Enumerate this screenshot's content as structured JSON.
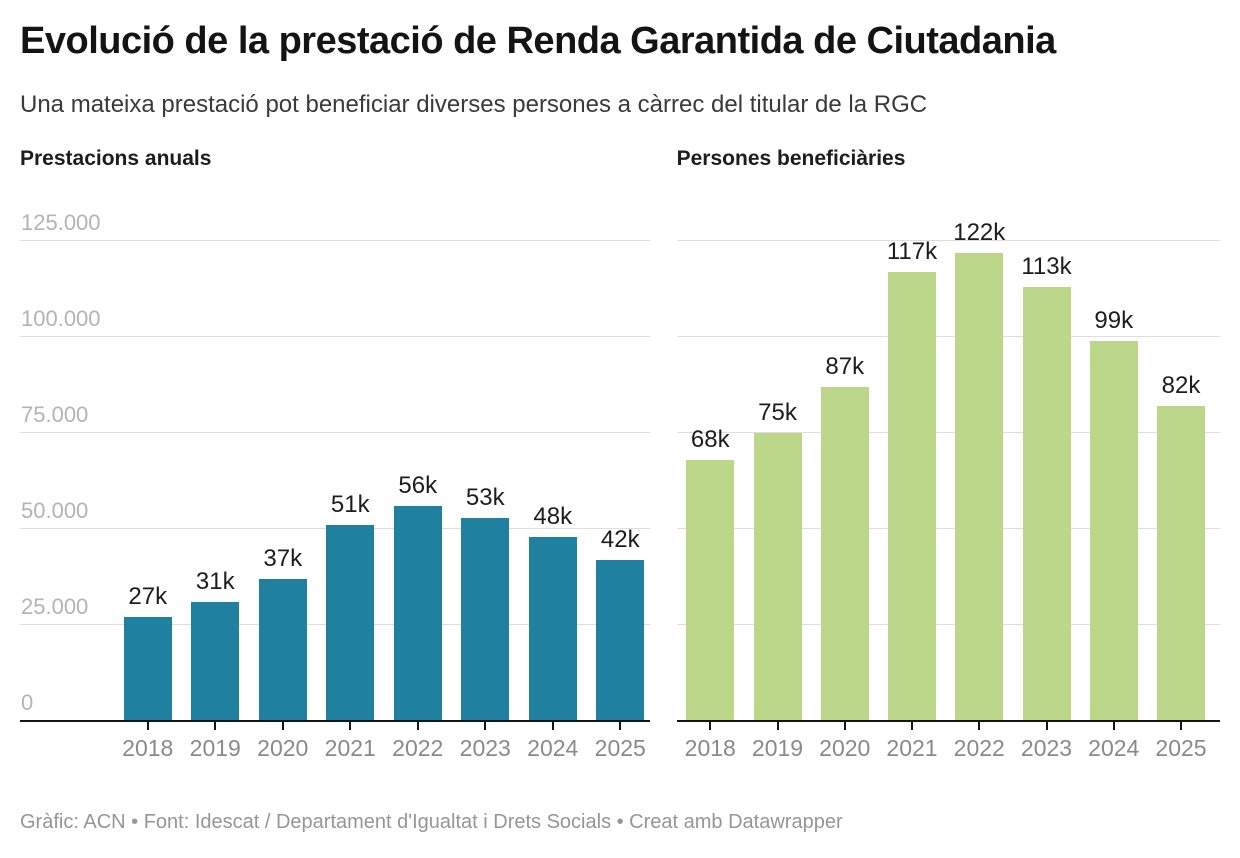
{
  "page": {
    "title": "Evolució de la prestació de Renda Garantida de Ciutadania",
    "subtitle": "Una mateixa prestació pot beneficiar diverses persones a càrrec del titular de la RGC",
    "footer": "Gràfic: ACN • Font: Idescat / Departament d'Igualtat i Drets Socials • Creat amb Datawrapper"
  },
  "colors": {
    "teal_bar": "#20809f",
    "green_bar": "#bcd78a",
    "gridline": "#dedede",
    "axis": "#141414",
    "y_tick_label": "#b4b4b4",
    "x_tick_label": "#8a8a8a",
    "value_label": "#1d1d1d"
  },
  "chart_data": [
    {
      "type": "bar",
      "title": "Prestacions anuals",
      "categories": [
        "2018",
        "2019",
        "2020",
        "2021",
        "2022",
        "2023",
        "2024",
        "2025"
      ],
      "values": [
        27000,
        31000,
        37000,
        51000,
        56000,
        53000,
        48000,
        42000
      ],
      "value_labels": [
        "27k",
        "31k",
        "37k",
        "51k",
        "56k",
        "53k",
        "48k",
        "42k"
      ],
      "bar_color": "#20809f",
      "ylim": [
        0,
        125000
      ],
      "y_ticks": [
        0,
        25000,
        50000,
        75000,
        100000,
        125000
      ],
      "y_tick_labels": [
        "0",
        "25.000",
        "50.000",
        "75.000",
        "100.000",
        "125.000"
      ],
      "show_y_labels": true,
      "grid": true,
      "legend": "none"
    },
    {
      "type": "bar",
      "title": "Persones beneficiàries",
      "categories": [
        "2018",
        "2019",
        "2020",
        "2021",
        "2022",
        "2023",
        "2024",
        "2025"
      ],
      "values": [
        68000,
        75000,
        87000,
        117000,
        122000,
        113000,
        99000,
        82000
      ],
      "value_labels": [
        "68k",
        "75k",
        "87k",
        "117k",
        "122k",
        "113k",
        "99k",
        "82k"
      ],
      "bar_color": "#bcd78a",
      "ylim": [
        0,
        125000
      ],
      "y_ticks": [
        0,
        25000,
        50000,
        75000,
        100000,
        125000
      ],
      "y_tick_labels": [
        "0",
        "25.000",
        "50.000",
        "75.000",
        "100.000",
        "125.000"
      ],
      "show_y_labels": false,
      "grid": true,
      "legend": "none"
    }
  ]
}
